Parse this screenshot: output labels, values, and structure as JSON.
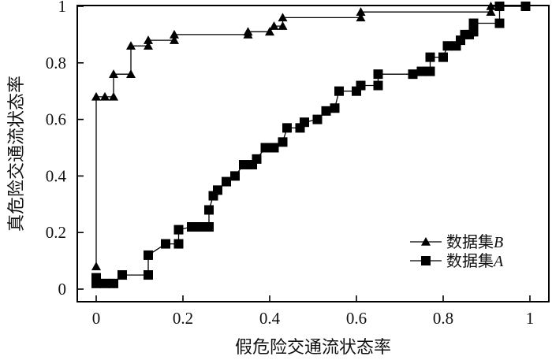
{
  "chart_data": {
    "type": "line",
    "title": "",
    "xlabel": "假危险交通流状态率",
    "ylabel": "真危险交通流状态率",
    "xlim": [
      0,
      1
    ],
    "ylim": [
      0,
      1
    ],
    "x_ticks": [
      "0",
      "0.2",
      "0.4",
      "0.6",
      "0.8",
      "1"
    ],
    "y_ticks": [
      "0",
      "0.2",
      "0.4",
      "0.6",
      "0.8",
      "1"
    ],
    "grid": false,
    "legend": "bottom-right",
    "series": [
      {
        "name": "数据集",
        "name_suffix": "B",
        "marker": "triangle",
        "color": "#000000",
        "points": [
          [
            0,
            0.08
          ],
          [
            0,
            0.68
          ],
          [
            0.02,
            0.68
          ],
          [
            0.04,
            0.68
          ],
          [
            0.04,
            0.76
          ],
          [
            0.08,
            0.76
          ],
          [
            0.08,
            0.86
          ],
          [
            0.12,
            0.86
          ],
          [
            0.12,
            0.88
          ],
          [
            0.18,
            0.88
          ],
          [
            0.18,
            0.9
          ],
          [
            0.35,
            0.9
          ],
          [
            0.35,
            0.91
          ],
          [
            0.4,
            0.91
          ],
          [
            0.41,
            0.93
          ],
          [
            0.43,
            0.93
          ],
          [
            0.43,
            0.96
          ],
          [
            0.61,
            0.96
          ],
          [
            0.61,
            0.98
          ],
          [
            0.91,
            0.98
          ],
          [
            0.91,
            1.0
          ],
          [
            0.99,
            1.0
          ]
        ]
      },
      {
        "name": "数据集",
        "name_suffix": "A",
        "marker": "square",
        "color": "#000000",
        "points": [
          [
            0,
            0.04
          ],
          [
            0,
            0.02
          ],
          [
            0.02,
            0.02
          ],
          [
            0.04,
            0.02
          ],
          [
            0.06,
            0.05
          ],
          [
            0.12,
            0.05
          ],
          [
            0.12,
            0.12
          ],
          [
            0.16,
            0.16
          ],
          [
            0.19,
            0.16
          ],
          [
            0.19,
            0.21
          ],
          [
            0.22,
            0.22
          ],
          [
            0.24,
            0.22
          ],
          [
            0.26,
            0.22
          ],
          [
            0.26,
            0.28
          ],
          [
            0.27,
            0.33
          ],
          [
            0.28,
            0.35
          ],
          [
            0.3,
            0.38
          ],
          [
            0.32,
            0.4
          ],
          [
            0.34,
            0.44
          ],
          [
            0.36,
            0.44
          ],
          [
            0.37,
            0.46
          ],
          [
            0.39,
            0.5
          ],
          [
            0.41,
            0.5
          ],
          [
            0.43,
            0.52
          ],
          [
            0.44,
            0.57
          ],
          [
            0.47,
            0.57
          ],
          [
            0.48,
            0.59
          ],
          [
            0.51,
            0.6
          ],
          [
            0.53,
            0.63
          ],
          [
            0.55,
            0.64
          ],
          [
            0.56,
            0.7
          ],
          [
            0.6,
            0.7
          ],
          [
            0.61,
            0.72
          ],
          [
            0.65,
            0.72
          ],
          [
            0.65,
            0.76
          ],
          [
            0.73,
            0.76
          ],
          [
            0.75,
            0.77
          ],
          [
            0.77,
            0.77
          ],
          [
            0.77,
            0.82
          ],
          [
            0.8,
            0.82
          ],
          [
            0.81,
            0.86
          ],
          [
            0.83,
            0.86
          ],
          [
            0.84,
            0.88
          ],
          [
            0.85,
            0.9
          ],
          [
            0.86,
            0.9
          ],
          [
            0.87,
            0.91
          ],
          [
            0.87,
            0.94
          ],
          [
            0.93,
            0.94
          ],
          [
            0.93,
            1.0
          ],
          [
            0.99,
            1.0
          ]
        ]
      }
    ]
  }
}
